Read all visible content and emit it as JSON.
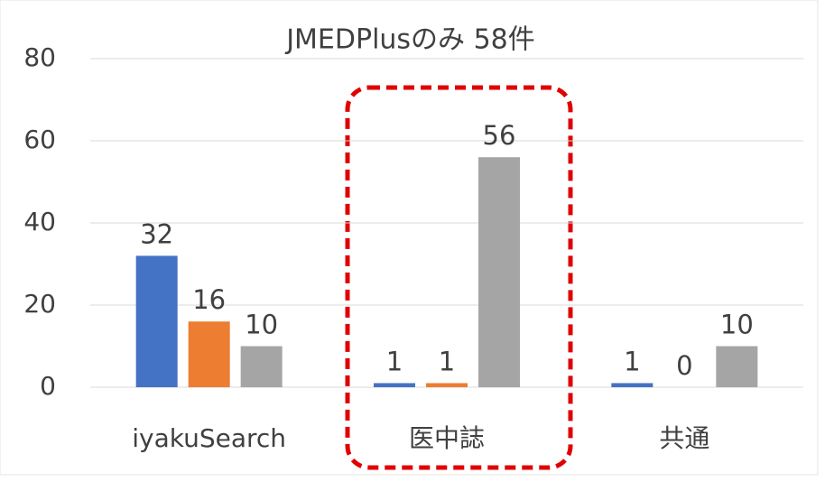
{
  "chart_data": {
    "type": "bar",
    "title": "JMEDPlusのみ 58件",
    "categories": [
      "iyakuSearch",
      "医中誌",
      "共通"
    ],
    "series": [
      {
        "color": "#4472c4",
        "values": [
          32,
          1,
          1
        ]
      },
      {
        "color": "#ed7d31",
        "values": [
          16,
          1,
          0
        ]
      },
      {
        "color": "#a5a5a5",
        "values": [
          10,
          56,
          10
        ]
      }
    ],
    "ylim": [
      0,
      80
    ],
    "yticks": [
      0,
      20,
      40,
      60,
      80
    ],
    "grid": true
  }
}
